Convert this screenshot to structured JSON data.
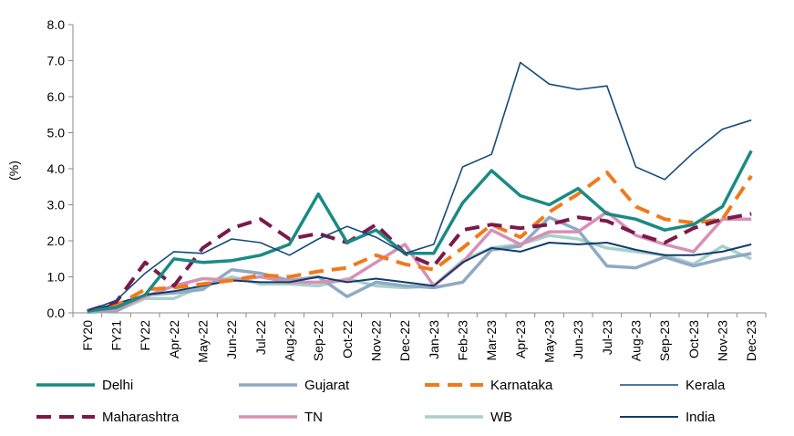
{
  "chart_data": {
    "type": "line",
    "title": "",
    "xlabel": "",
    "ylabel": "(%)",
    "ylim": [
      0,
      8
    ],
    "yticks": [
      "0.0",
      "1.0",
      "2.0",
      "3.0",
      "4.0",
      "5.0",
      "6.0",
      "7.0",
      "8.0"
    ],
    "grid": false,
    "legend_position": "bottom",
    "categories": [
      "FY20",
      "FY21",
      "FY22",
      "Apr-22",
      "May-22",
      "Jun-22",
      "Jul-22",
      "Aug-22",
      "Sep-22",
      "Oct-22",
      "Nov-22",
      "Dec-22",
      "Jan-23",
      "Feb-23",
      "Mar-23",
      "Apr-23",
      "May-23",
      "Jun-23",
      "Jul-23",
      "Aug-23",
      "Sep-23",
      "Oct-23",
      "Nov-23",
      "Dec-23"
    ],
    "series": [
      {
        "name": "Delhi",
        "color": "#1a8a84",
        "style": "solid-thick",
        "values": [
          0.05,
          0.15,
          0.5,
          1.5,
          1.4,
          1.45,
          1.6,
          1.9,
          3.3,
          1.95,
          2.3,
          1.65,
          1.65,
          3.05,
          3.95,
          3.25,
          3.0,
          3.45,
          2.75,
          2.6,
          2.3,
          2.45,
          2.95,
          4.5
        ]
      },
      {
        "name": "Gujarat",
        "color": "#8fa9c5",
        "style": "solid-thick",
        "values": [
          0.02,
          0.05,
          0.5,
          0.55,
          0.65,
          1.2,
          1.1,
          0.9,
          1.0,
          0.45,
          0.85,
          0.75,
          0.7,
          0.85,
          1.75,
          1.85,
          2.65,
          2.3,
          1.3,
          1.25,
          1.55,
          1.3,
          1.5,
          1.65
        ]
      },
      {
        "name": "Karnataka",
        "color": "#f07a1a",
        "style": "dashed-thick",
        "values": [
          0.05,
          0.2,
          0.65,
          0.7,
          0.8,
          0.9,
          1.05,
          1.0,
          1.15,
          1.25,
          1.6,
          1.35,
          1.2,
          1.8,
          2.45,
          2.1,
          2.8,
          3.3,
          3.9,
          2.95,
          2.6,
          2.5,
          2.6,
          3.8
        ]
      },
      {
        "name": "Kerala",
        "color": "#154a7a",
        "style": "solid-thin",
        "values": [
          0.05,
          0.35,
          1.1,
          1.7,
          1.65,
          2.05,
          1.95,
          1.6,
          2.05,
          2.4,
          2.1,
          1.65,
          1.9,
          4.05,
          4.4,
          6.95,
          6.35,
          6.2,
          6.3,
          4.05,
          3.7,
          4.45,
          5.1,
          5.35
        ]
      },
      {
        "name": "Maharashtra",
        "color": "#7a1a4a",
        "style": "dashed-thick",
        "values": [
          0.05,
          0.3,
          1.4,
          0.75,
          1.8,
          2.35,
          2.6,
          2.05,
          2.2,
          1.95,
          2.45,
          1.65,
          1.3,
          2.3,
          2.45,
          2.35,
          2.45,
          2.65,
          2.55,
          2.2,
          1.95,
          2.35,
          2.6,
          2.75
        ]
      },
      {
        "name": "TN",
        "color": "#d690b6",
        "style": "solid-thick",
        "values": [
          0.05,
          0.1,
          0.45,
          0.75,
          0.95,
          0.9,
          1.0,
          0.85,
          0.85,
          0.9,
          1.4,
          1.9,
          0.75,
          1.4,
          2.3,
          1.9,
          2.25,
          2.25,
          2.8,
          2.15,
          1.9,
          1.7,
          2.6,
          2.6
        ]
      },
      {
        "name": "WB",
        "color": "#a9d0c9",
        "style": "solid-thick",
        "values": [
          0.02,
          0.05,
          0.4,
          0.4,
          0.75,
          1.0,
          0.8,
          0.8,
          0.75,
          0.95,
          0.75,
          0.7,
          0.75,
          1.45,
          1.8,
          1.9,
          2.15,
          2.05,
          1.8,
          1.7,
          1.6,
          1.35,
          1.85,
          1.5
        ]
      },
      {
        "name": "India",
        "color": "#123c69",
        "style": "solid-medium",
        "values": [
          0.05,
          0.25,
          0.5,
          0.6,
          0.75,
          0.9,
          0.85,
          0.85,
          1.0,
          0.85,
          0.95,
          0.85,
          0.75,
          1.4,
          1.8,
          1.7,
          1.95,
          1.9,
          1.95,
          1.75,
          1.6,
          1.6,
          1.7,
          1.9
        ]
      }
    ]
  }
}
